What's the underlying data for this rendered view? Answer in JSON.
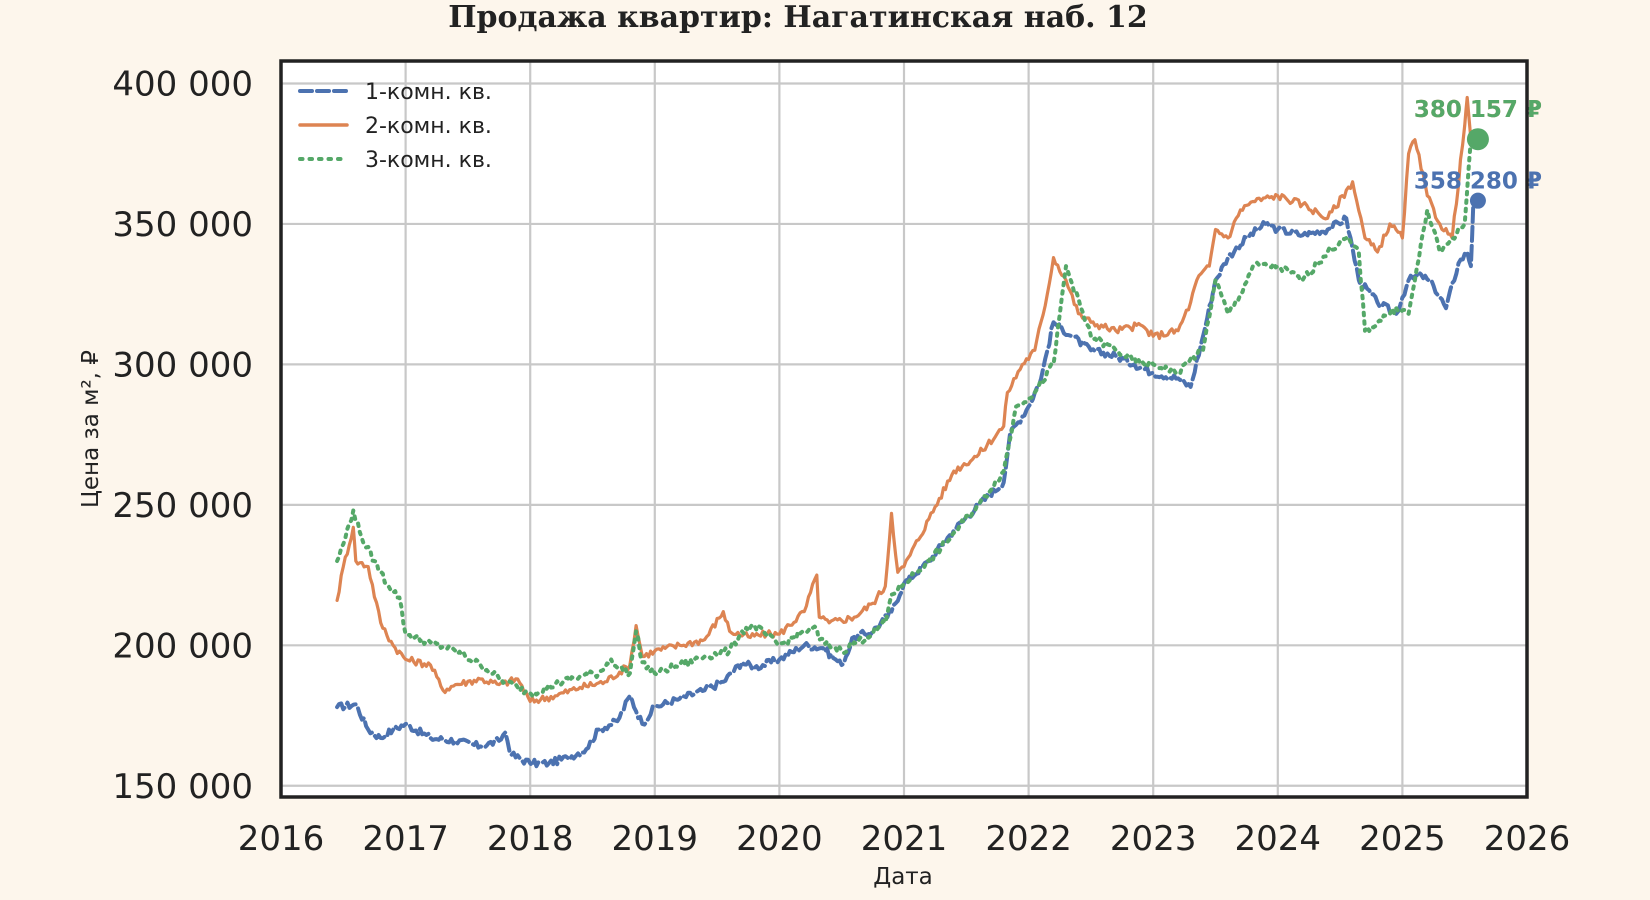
{
  "chart_data": {
    "type": "line",
    "title": "Продажа квартир: Нагатинская наб. 12",
    "xlabel": "Дата",
    "ylabel": "Цена за м², ₽",
    "xlim": [
      2016.0,
      2026.0
    ],
    "ylim": [
      146000,
      408000
    ],
    "x_ticks": [
      2016,
      2017,
      2018,
      2019,
      2020,
      2021,
      2022,
      2023,
      2024,
      2025,
      2026
    ],
    "x_tick_labels": [
      "2016",
      "2017",
      "2018",
      "2019",
      "2020",
      "2021",
      "2022",
      "2023",
      "2024",
      "2025",
      "2026"
    ],
    "y_ticks": [
      150000,
      200000,
      250000,
      300000,
      350000,
      400000
    ],
    "y_tick_labels": [
      "150 000",
      "200 000",
      "250 000",
      "300 000",
      "350 000",
      "400 000"
    ],
    "grid": true,
    "legend_position": "top-left",
    "series": [
      {
        "name": "1-комн. кв.",
        "color": "#4c72b0",
        "style": "dashed",
        "x": [
          2016.45,
          2016.6,
          2016.7,
          2016.8,
          2016.9,
          2017.0,
          2017.2,
          2017.4,
          2017.6,
          2017.75,
          2017.8,
          2017.85,
          2018.0,
          2018.15,
          2018.3,
          2018.45,
          2018.55,
          2018.7,
          2018.8,
          2018.9,
          2019.0,
          2019.2,
          2019.4,
          2019.55,
          2019.7,
          2019.8,
          2020.0,
          2020.2,
          2020.35,
          2020.45,
          2020.5,
          2020.6,
          2020.75,
          2020.9,
          2021.0,
          2021.2,
          2021.4,
          2021.6,
          2021.8,
          2021.85,
          2022.0,
          2022.1,
          2022.2,
          2022.35,
          2022.5,
          2022.7,
          2022.85,
          2023.0,
          2023.2,
          2023.3,
          2023.4,
          2023.5,
          2023.6,
          2023.75,
          2023.9,
          2024.0,
          2024.2,
          2024.4,
          2024.55,
          2024.65,
          2024.8,
          2024.95,
          2025.05,
          2025.15,
          2025.25,
          2025.35,
          2025.45,
          2025.52,
          2025.55,
          2025.57
        ],
        "values": [
          178000,
          179000,
          170000,
          167000,
          170000,
          172000,
          167000,
          166000,
          164000,
          166000,
          169000,
          161000,
          158000,
          158000,
          160000,
          163000,
          170000,
          173000,
          182000,
          172000,
          178000,
          181000,
          184000,
          187000,
          194000,
          192000,
          195000,
          200000,
          199000,
          195000,
          193000,
          203000,
          205000,
          212000,
          222000,
          230000,
          241000,
          250000,
          258000,
          275000,
          285000,
          295000,
          315000,
          310000,
          305000,
          303000,
          300000,
          297000,
          295000,
          292000,
          310000,
          330000,
          338000,
          345000,
          350000,
          348000,
          346000,
          348000,
          352000,
          330000,
          322000,
          318000,
          330000,
          332000,
          328000,
          320000,
          336000,
          340000,
          335000,
          358280
        ]
      },
      {
        "name": "2-комн. кв.",
        "color": "#dd8452",
        "style": "solid",
        "x": [
          2016.45,
          2016.5,
          2016.58,
          2016.6,
          2016.7,
          2016.8,
          2016.9,
          2017.0,
          2017.2,
          2017.3,
          2017.4,
          2017.6,
          2017.75,
          2017.9,
          2018.0,
          2018.2,
          2018.4,
          2018.6,
          2018.8,
          2018.85,
          2018.9,
          2019.0,
          2019.2,
          2019.4,
          2019.55,
          2019.6,
          2019.75,
          2019.9,
          2020.0,
          2020.2,
          2020.3,
          2020.32,
          2020.4,
          2020.6,
          2020.75,
          2020.85,
          2020.9,
          2020.95,
          2021.0,
          2021.2,
          2021.4,
          2021.6,
          2021.8,
          2021.83,
          2021.95,
          2022.05,
          2022.15,
          2022.2,
          2022.3,
          2022.4,
          2022.5,
          2022.7,
          2022.9,
          2023.0,
          2023.2,
          2023.3,
          2023.35,
          2023.45,
          2023.5,
          2023.6,
          2023.7,
          2023.8,
          2024.0,
          2024.2,
          2024.4,
          2024.6,
          2024.7,
          2024.8,
          2024.9,
          2025.0,
          2025.05,
          2025.1,
          2025.2,
          2025.3,
          2025.4,
          2025.5,
          2025.52,
          2025.55
        ],
        "values": [
          216000,
          228000,
          242000,
          230000,
          228000,
          208000,
          200000,
          195000,
          193000,
          184000,
          186000,
          188000,
          186000,
          188000,
          180000,
          182000,
          185000,
          187000,
          193000,
          207000,
          196000,
          198000,
          200000,
          202000,
          212000,
          205000,
          203000,
          204000,
          204000,
          212000,
          225000,
          210000,
          208000,
          210000,
          215000,
          221000,
          247000,
          226000,
          228000,
          245000,
          262000,
          268000,
          278000,
          290000,
          300000,
          305000,
          325000,
          338000,
          330000,
          318000,
          315000,
          312000,
          314000,
          310000,
          312000,
          322000,
          330000,
          335000,
          348000,
          345000,
          355000,
          358000,
          360000,
          357000,
          352000,
          365000,
          345000,
          340000,
          350000,
          345000,
          375000,
          380000,
          360000,
          350000,
          345000,
          385000,
          395000,
          380157
        ]
      },
      {
        "name": "3-комн. кв.",
        "color": "#55a868",
        "style": "dotted",
        "x": [
          2016.45,
          2016.5,
          2016.58,
          2016.65,
          2016.75,
          2016.85,
          2016.95,
          2017.0,
          2017.2,
          2017.4,
          2017.6,
          2017.8,
          2017.9,
          2018.0,
          2018.2,
          2018.4,
          2018.55,
          2018.65,
          2018.7,
          2018.8,
          2018.85,
          2018.9,
          2019.0,
          2019.2,
          2019.4,
          2019.6,
          2019.7,
          2019.8,
          2020.0,
          2020.2,
          2020.3,
          2020.32,
          2020.4,
          2020.5,
          2020.7,
          2020.85,
          2020.9,
          2021.0,
          2021.2,
          2021.4,
          2021.6,
          2021.8,
          2021.9,
          2022.05,
          2022.2,
          2022.3,
          2022.5,
          2022.7,
          2022.9,
          2023.0,
          2023.2,
          2023.3,
          2023.4,
          2023.5,
          2023.6,
          2023.7,
          2023.8,
          2024.0,
          2024.2,
          2024.4,
          2024.55,
          2024.65,
          2024.7,
          2024.8,
          2024.95,
          2025.05,
          2025.1,
          2025.2,
          2025.3,
          2025.4,
          2025.5,
          2025.55
        ],
        "values": [
          230000,
          236000,
          248000,
          238000,
          230000,
          222000,
          217000,
          204000,
          201000,
          198000,
          193000,
          187000,
          185000,
          183000,
          186000,
          189000,
          190000,
          195000,
          192000,
          190000,
          205000,
          194000,
          190000,
          193000,
          196000,
          198000,
          205000,
          207000,
          200000,
          205000,
          206000,
          202000,
          200000,
          198000,
          203000,
          208000,
          218000,
          222000,
          230000,
          240000,
          250000,
          262000,
          285000,
          290000,
          300000,
          335000,
          310000,
          305000,
          300000,
          300000,
          297000,
          302000,
          305000,
          330000,
          318000,
          325000,
          335000,
          335000,
          330000,
          340000,
          345000,
          340000,
          312000,
          315000,
          320000,
          318000,
          330000,
          355000,
          340000,
          345000,
          350000,
          380157
        ]
      }
    ],
    "end_labels": [
      {
        "series": 0,
        "text": "358 280 ₽",
        "color": "#4c72b0",
        "x": 2025.55,
        "y": 358280
      },
      {
        "series": 1,
        "text": "380 157 ₽",
        "color": "#dd8452",
        "x": 2025.55,
        "y": 380157
      },
      {
        "series": 2,
        "text": "380 157 ₽",
        "color": "#55a868",
        "x": 2025.55,
        "y": 380157
      }
    ]
  }
}
